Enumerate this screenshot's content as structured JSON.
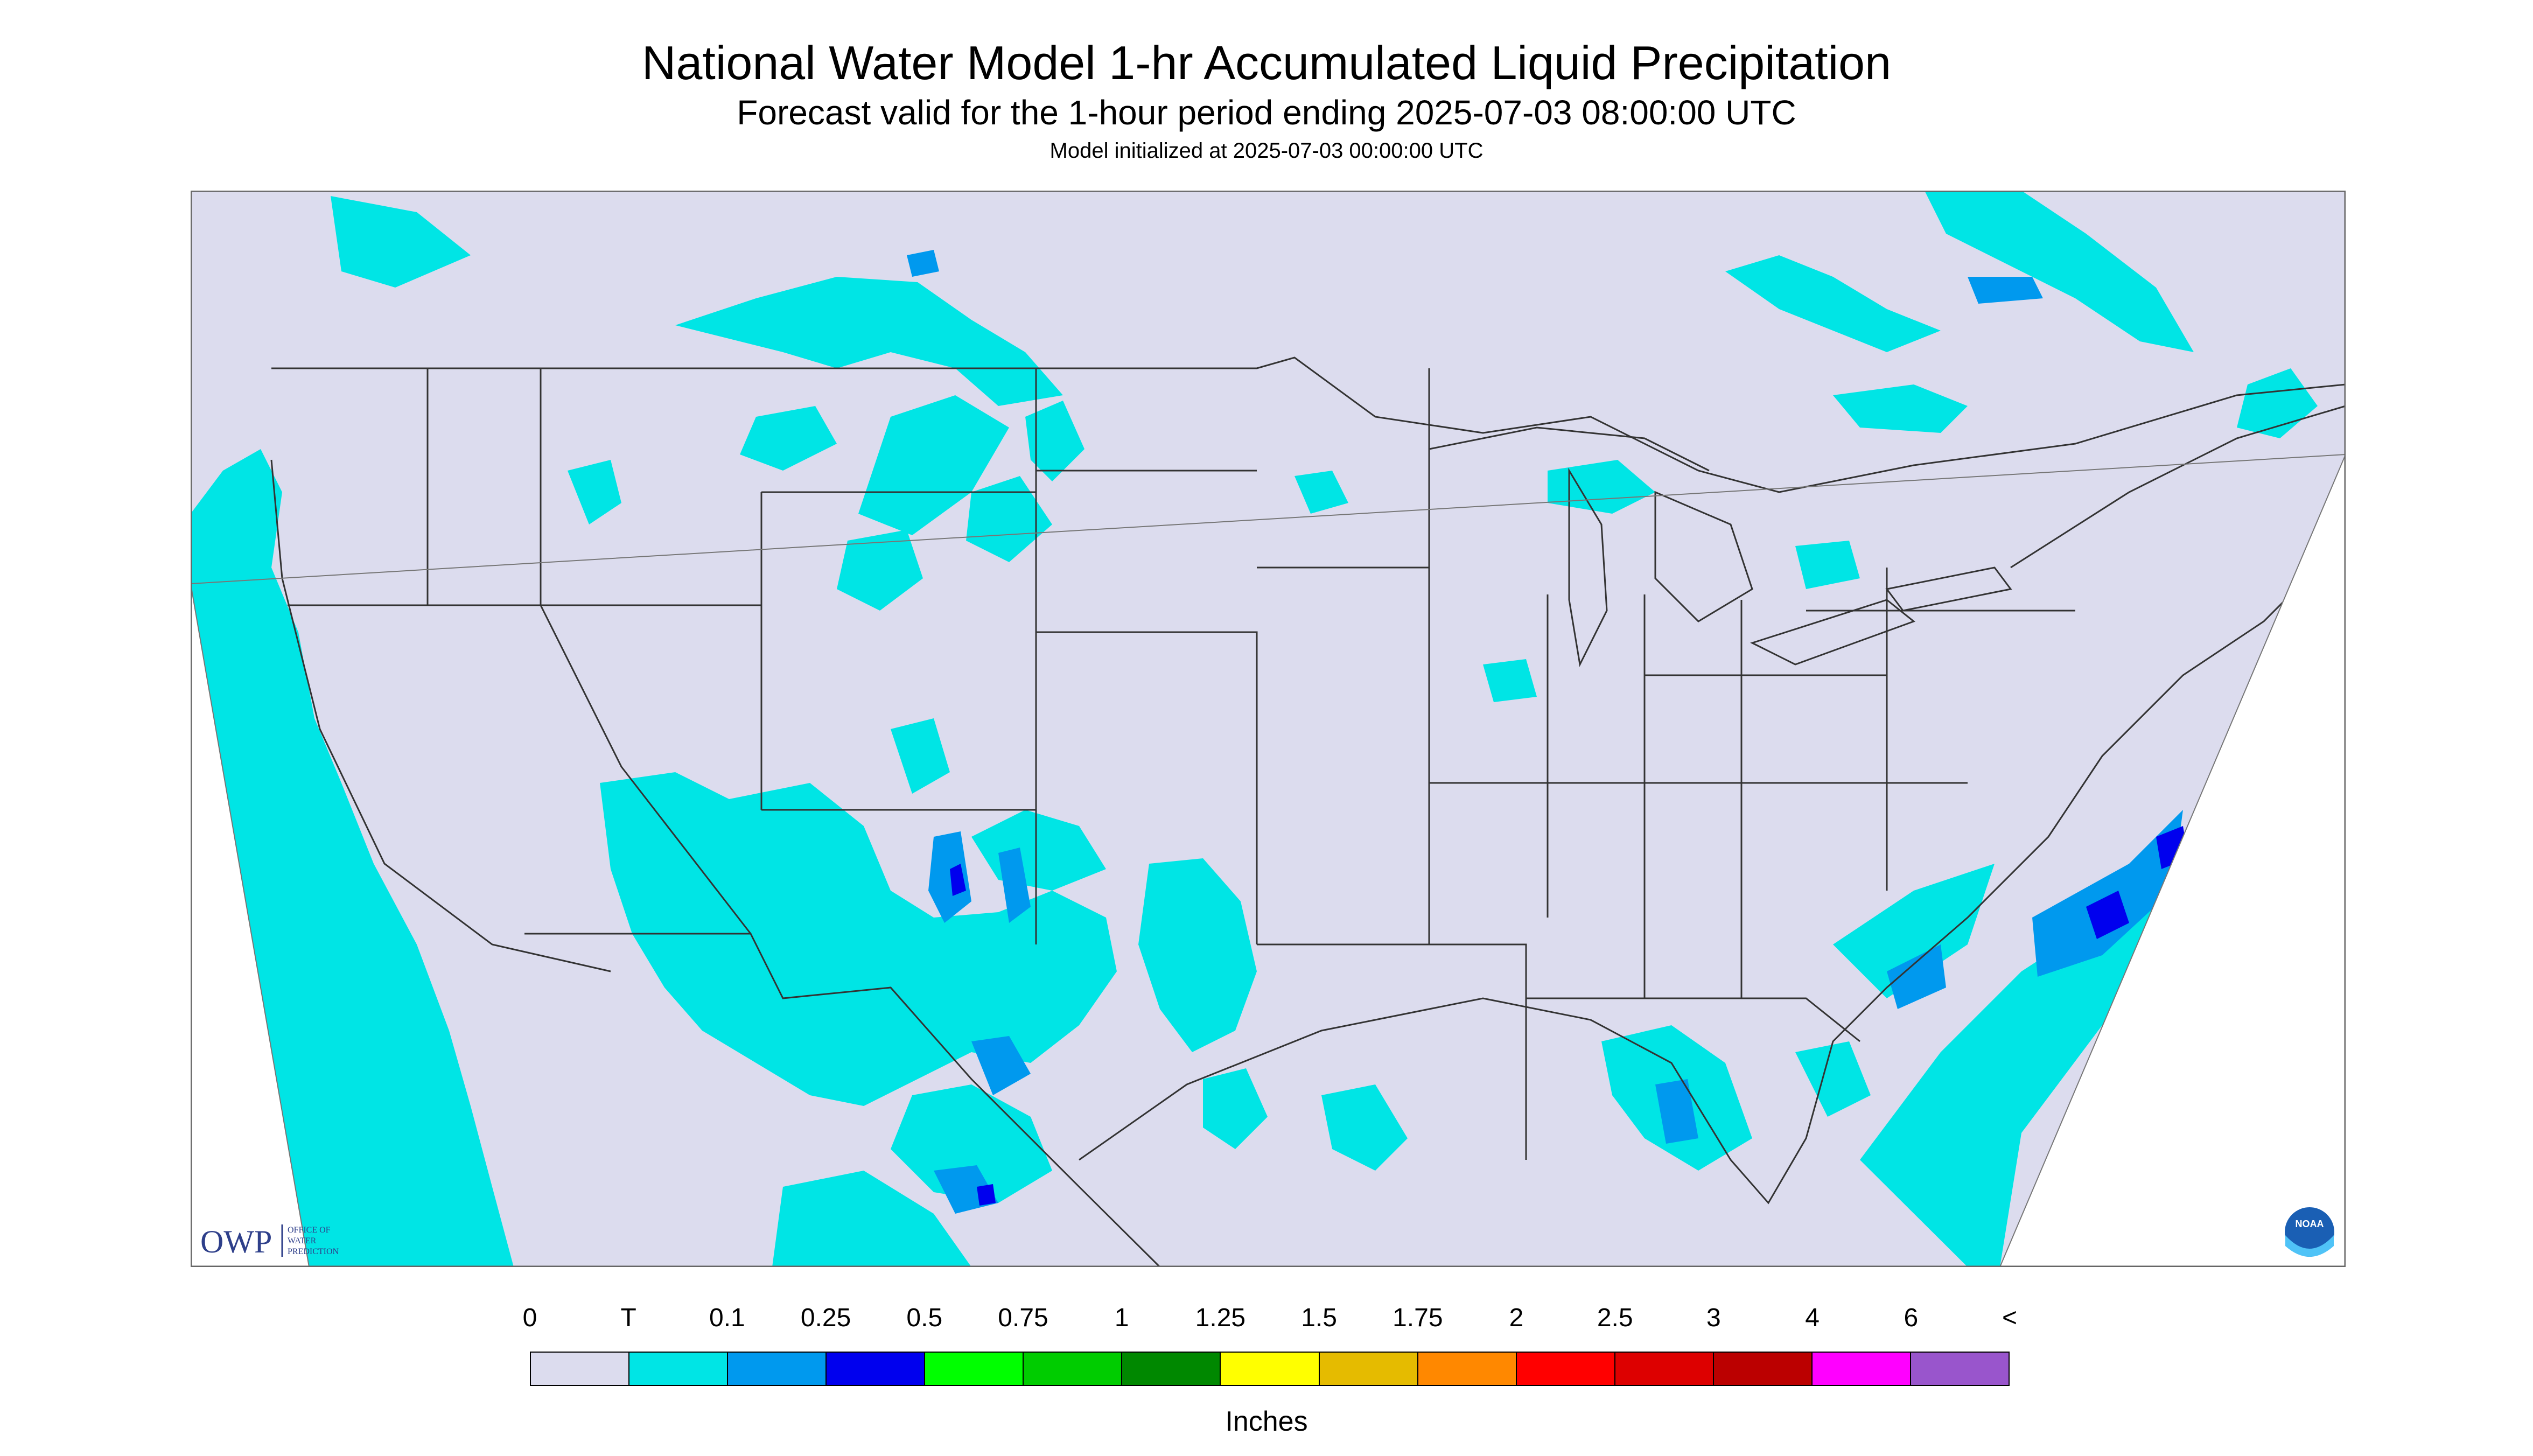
{
  "header": {
    "title": "National Water Model 1-hr Accumulated Liquid Precipitation",
    "subtitle": "Forecast valid for the 1-hour period ending 2025-07-03 08:00:00 UTC",
    "init": "Model initialized at 2025-07-03 00:00:00 UTC"
  },
  "logos": {
    "owp_abbrev": "OWP",
    "owp_line1": "OFFICE OF",
    "owp_line2": "WATER",
    "owp_line3": "PREDICTION",
    "noaa": "NOAA"
  },
  "legend": {
    "units": "Inches",
    "labels": [
      "0",
      "T",
      "0.1",
      "0.25",
      "0.5",
      "0.75",
      "1",
      "1.25",
      "1.5",
      "1.75",
      "2",
      "2.5",
      "3",
      "4",
      "6",
      "<"
    ],
    "colors": [
      "#dcdcee",
      "#00e5e5",
      "#0099ee",
      "#0000ee",
      "#00ff00",
      "#00cc00",
      "#008800",
      "#ffff00",
      "#e5bb00",
      "#ff8800",
      "#ff0000",
      "#dd0000",
      "#bb0000",
      "#ff00ff",
      "#9955cc"
    ]
  },
  "colors": {
    "no_data": "#ffffff",
    "background": "#dcdcee",
    "trace": "#00e5e5",
    "light": "#0099ee",
    "moderate": "#0000ee",
    "border": "#333333"
  }
}
